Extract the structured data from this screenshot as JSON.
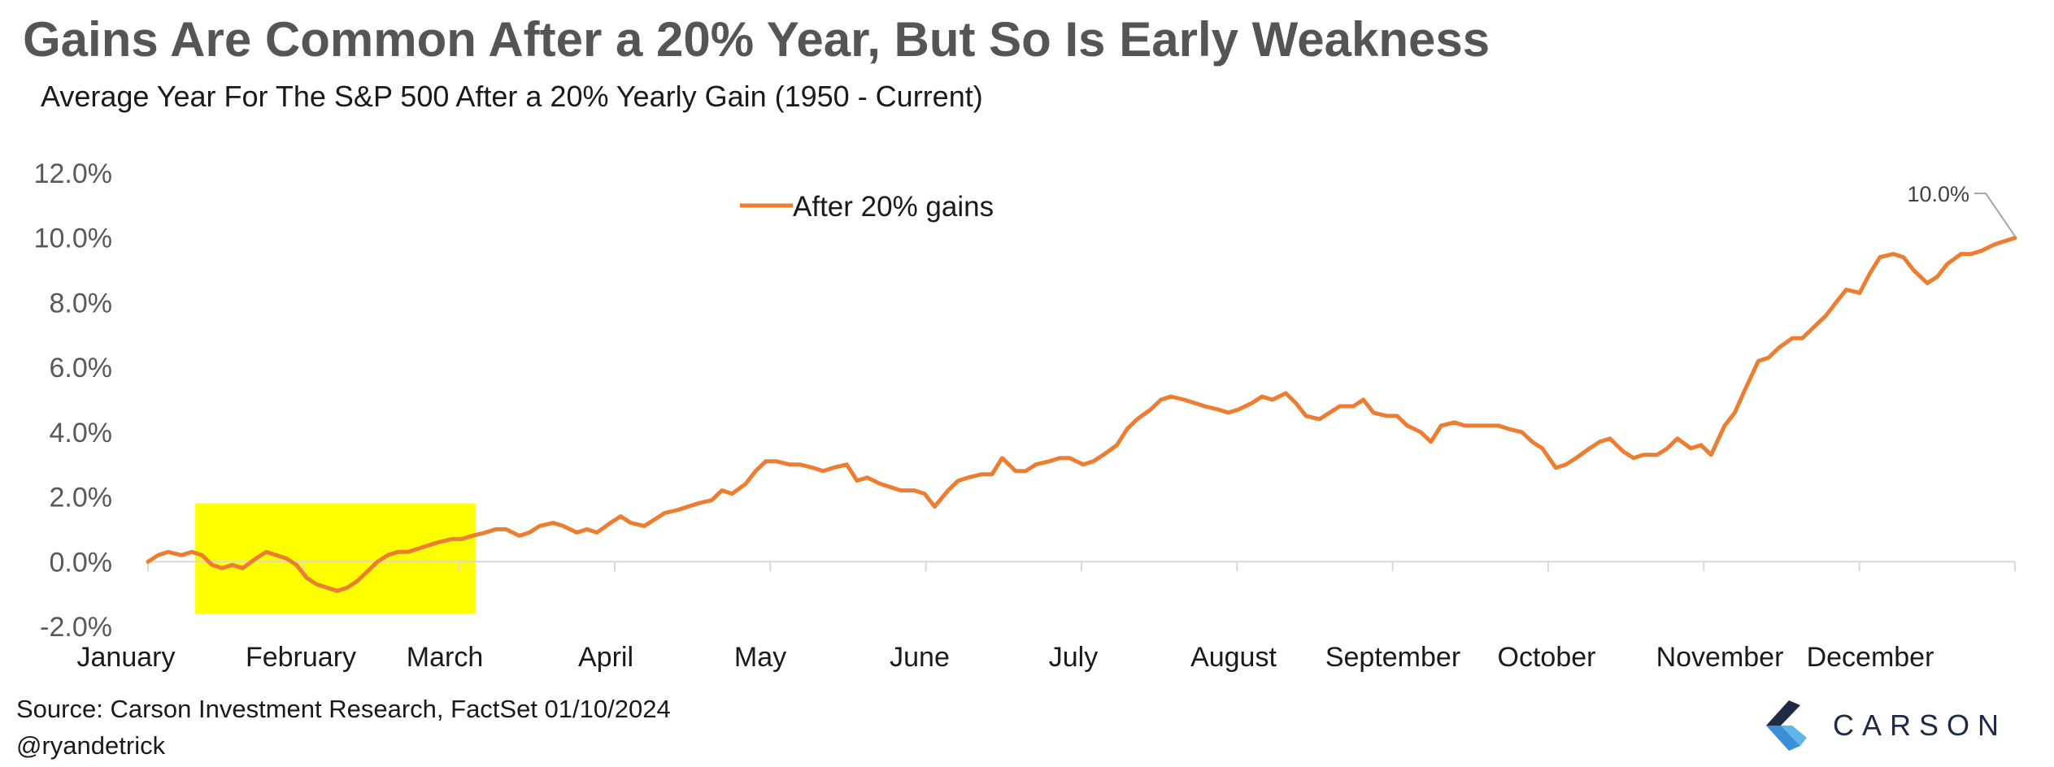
{
  "title": "Gains Are Common After a 20% Year, But So Is Early Weakness",
  "subtitle": "Average Year For The S&P 500 After a 20% Yearly Gain (1950 - Current)",
  "source": "Source: Carson Investment Research, FactSet 01/10/2024",
  "handle": "@ryandetrick",
  "logo": {
    "word": "CARSON",
    "icon": "carson-chevron-logo"
  },
  "colors": {
    "line": "#ed7d31",
    "highlight": "#ffff00",
    "text": "#595959",
    "title": "#555555"
  },
  "chart_data": {
    "type": "line",
    "ylim": [
      -2,
      12
    ],
    "yticks": [
      "-2.0%",
      "0.0%",
      "2.0%",
      "4.0%",
      "6.0%",
      "8.0%",
      "10.0%",
      "12.0%"
    ],
    "months": [
      "January",
      "February",
      "March",
      "April",
      "May",
      "June",
      "July",
      "August",
      "September",
      "October",
      "November",
      "December"
    ],
    "legend": {
      "label": "After 20% gains",
      "position": "top-center"
    },
    "highlight": {
      "from_day": 14,
      "to_day": 97,
      "y_from": -1.6,
      "y_to": 1.8
    },
    "end_label": "10.0%",
    "series": [
      {
        "name": "After 20% gains",
        "points": [
          [
            0,
            0.0
          ],
          [
            3,
            0.2
          ],
          [
            6,
            0.3
          ],
          [
            10,
            0.2
          ],
          [
            13,
            0.3
          ],
          [
            16,
            0.2
          ],
          [
            19,
            -0.1
          ],
          [
            22,
            -0.2
          ],
          [
            25,
            -0.1
          ],
          [
            28,
            -0.2
          ],
          [
            32,
            0.1
          ],
          [
            35,
            0.3
          ],
          [
            38,
            0.2
          ],
          [
            41,
            0.1
          ],
          [
            44,
            -0.1
          ],
          [
            47,
            -0.5
          ],
          [
            50,
            -0.7
          ],
          [
            53,
            -0.8
          ],
          [
            56,
            -0.9
          ],
          [
            59,
            -0.8
          ],
          [
            62,
            -0.6
          ],
          [
            65,
            -0.3
          ],
          [
            68,
            0.0
          ],
          [
            71,
            0.2
          ],
          [
            74,
            0.3
          ],
          [
            77,
            0.3
          ],
          [
            80,
            0.4
          ],
          [
            83,
            0.5
          ],
          [
            86,
            0.6
          ],
          [
            90,
            0.7
          ],
          [
            93,
            0.7
          ],
          [
            96,
            0.8
          ],
          [
            100,
            0.9
          ],
          [
            103,
            1.0
          ],
          [
            106,
            1.0
          ],
          [
            110,
            0.8
          ],
          [
            113,
            0.9
          ],
          [
            116,
            1.1
          ],
          [
            120,
            1.2
          ],
          [
            123,
            1.1
          ],
          [
            127,
            0.9
          ],
          [
            130,
            1.0
          ],
          [
            133,
            0.9
          ],
          [
            137,
            1.2
          ],
          [
            140,
            1.4
          ],
          [
            143,
            1.2
          ],
          [
            147,
            1.1
          ],
          [
            150,
            1.3
          ],
          [
            153,
            1.5
          ],
          [
            157,
            1.6
          ],
          [
            160,
            1.7
          ],
          [
            163,
            1.8
          ],
          [
            167,
            1.9
          ],
          [
            170,
            2.2
          ],
          [
            173,
            2.1
          ],
          [
            177,
            2.4
          ],
          [
            180,
            2.8
          ],
          [
            183,
            3.1
          ],
          [
            186,
            3.1
          ],
          [
            190,
            3.0
          ],
          [
            193,
            3.0
          ],
          [
            197,
            2.9
          ],
          [
            200,
            2.8
          ],
          [
            203,
            2.9
          ],
          [
            207,
            3.0
          ],
          [
            210,
            2.5
          ],
          [
            213,
            2.6
          ],
          [
            217,
            2.4
          ],
          [
            220,
            2.3
          ],
          [
            223,
            2.2
          ],
          [
            227,
            2.2
          ],
          [
            230,
            2.1
          ],
          [
            233,
            1.7
          ],
          [
            237,
            2.2
          ],
          [
            240,
            2.5
          ],
          [
            243,
            2.6
          ],
          [
            247,
            2.7
          ],
          [
            250,
            2.7
          ],
          [
            253,
            3.2
          ],
          [
            257,
            2.8
          ],
          [
            260,
            2.8
          ],
          [
            263,
            3.0
          ],
          [
            267,
            3.1
          ],
          [
            270,
            3.2
          ],
          [
            273,
            3.2
          ],
          [
            277,
            3.0
          ],
          [
            280,
            3.1
          ],
          [
            283,
            3.3
          ],
          [
            287,
            3.6
          ],
          [
            290,
            4.1
          ],
          [
            293,
            4.4
          ],
          [
            297,
            4.7
          ],
          [
            300,
            5.0
          ],
          [
            303,
            5.1
          ],
          [
            307,
            5.0
          ],
          [
            310,
            4.9
          ],
          [
            313,
            4.8
          ],
          [
            317,
            4.7
          ],
          [
            320,
            4.6
          ],
          [
            323,
            4.7
          ],
          [
            327,
            4.9
          ],
          [
            330,
            5.1
          ],
          [
            333,
            5.0
          ],
          [
            337,
            5.2
          ],
          [
            340,
            4.9
          ],
          [
            343,
            4.5
          ],
          [
            347,
            4.4
          ],
          [
            350,
            4.6
          ],
          [
            353,
            4.8
          ],
          [
            357,
            4.8
          ],
          [
            360,
            5.0
          ],
          [
            363,
            4.6
          ],
          [
            367,
            4.5
          ],
          [
            370,
            4.5
          ],
          [
            373,
            4.2
          ],
          [
            377,
            4.0
          ],
          [
            380,
            3.7
          ],
          [
            383,
            4.2
          ],
          [
            387,
            4.3
          ],
          [
            390,
            4.2
          ],
          [
            393,
            4.2
          ],
          [
            397,
            4.2
          ],
          [
            400,
            4.2
          ],
          [
            403,
            4.1
          ],
          [
            407,
            4.0
          ],
          [
            410,
            3.7
          ],
          [
            413,
            3.5
          ],
          [
            417,
            2.9
          ],
          [
            420,
            3.0
          ],
          [
            423,
            3.2
          ],
          [
            427,
            3.5
          ],
          [
            430,
            3.7
          ],
          [
            433,
            3.8
          ],
          [
            437,
            3.4
          ],
          [
            440,
            3.2
          ],
          [
            443,
            3.3
          ],
          [
            447,
            3.3
          ],
          [
            450,
            3.5
          ],
          [
            453,
            3.8
          ],
          [
            457,
            3.5
          ],
          [
            460,
            3.6
          ],
          [
            463,
            3.3
          ],
          [
            467,
            4.2
          ],
          [
            470,
            4.6
          ],
          [
            473,
            5.3
          ],
          [
            477,
            6.2
          ],
          [
            480,
            6.3
          ],
          [
            483,
            6.6
          ],
          [
            487,
            6.9
          ],
          [
            490,
            6.9
          ],
          [
            493,
            7.2
          ],
          [
            497,
            7.6
          ],
          [
            500,
            8.0
          ],
          [
            503,
            8.4
          ],
          [
            507,
            8.3
          ],
          [
            510,
            8.9
          ],
          [
            513,
            9.4
          ],
          [
            517,
            9.5
          ],
          [
            520,
            9.4
          ],
          [
            523,
            9.0
          ],
          [
            527,
            8.6
          ],
          [
            530,
            8.8
          ],
          [
            533,
            9.2
          ],
          [
            537,
            9.5
          ],
          [
            540,
            9.5
          ],
          [
            543,
            9.6
          ],
          [
            547,
            9.8
          ],
          [
            550,
            9.9
          ],
          [
            553,
            10.0
          ]
        ]
      }
    ]
  }
}
